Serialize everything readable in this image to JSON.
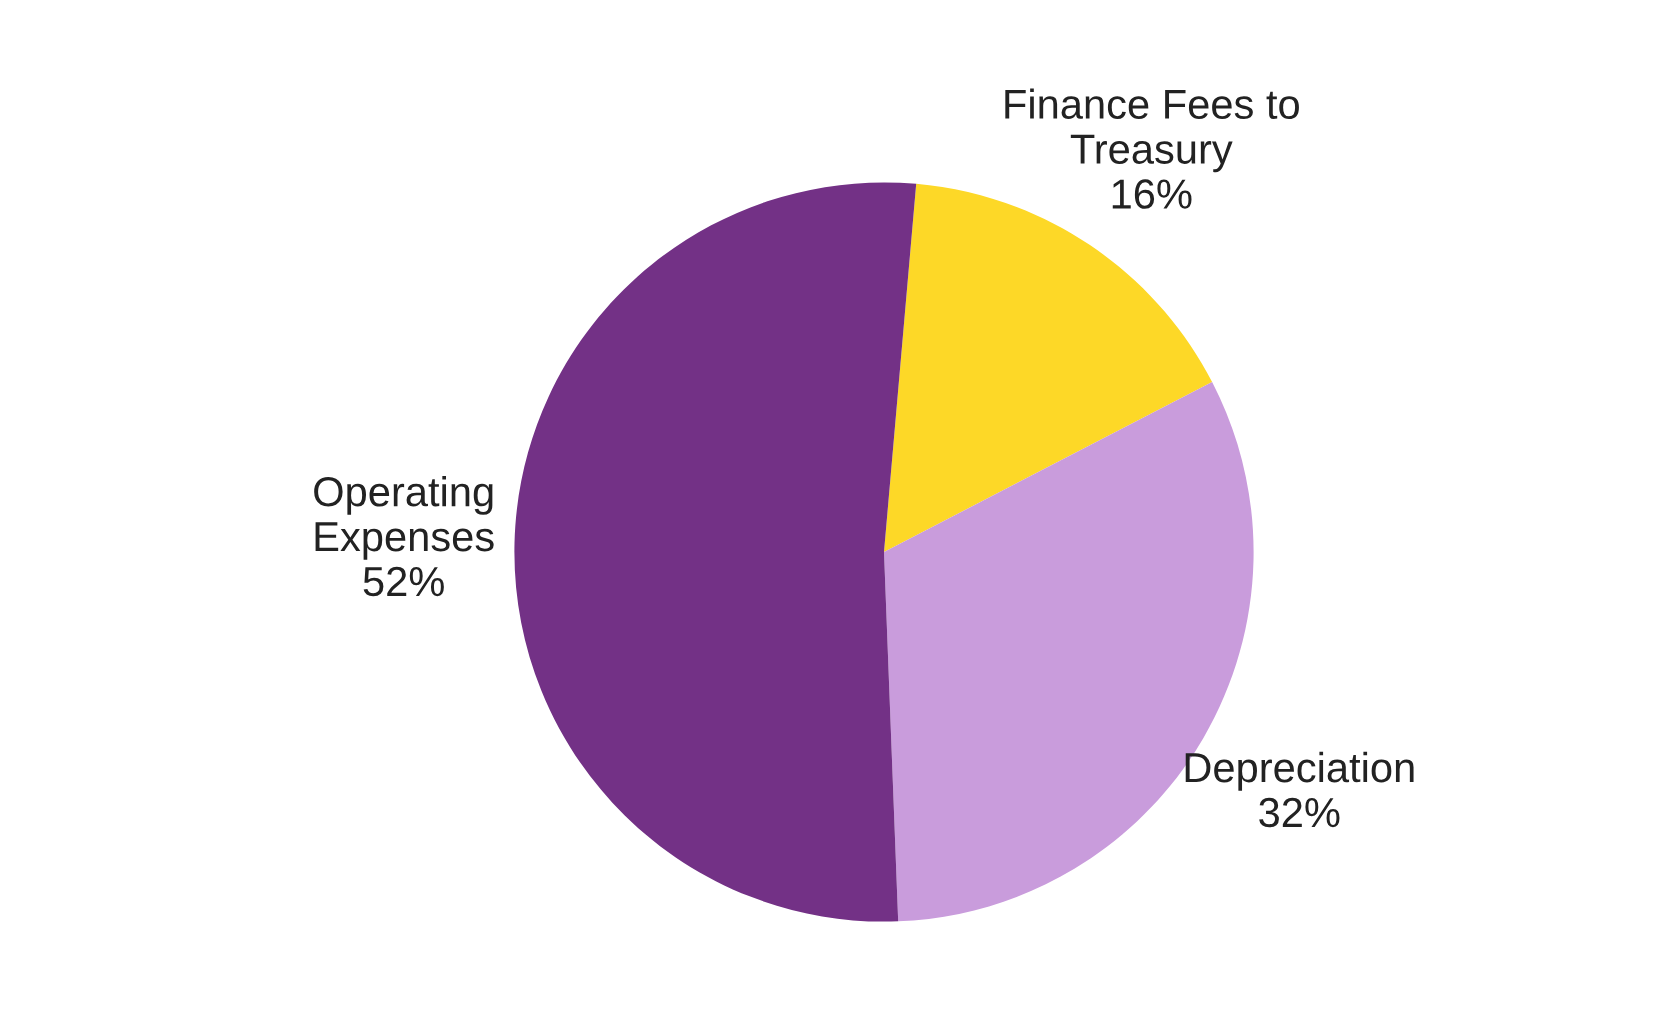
{
  "chart_data": {
    "type": "pie",
    "categories": [
      "Finance Fees to\nTreasury",
      "Depreciation",
      "Operating\nExpenses"
    ],
    "values": [
      16,
      32,
      52
    ],
    "colors": [
      "#fdd827",
      "#c99cdc",
      "#733186"
    ],
    "value_labels": [
      "16%",
      "32%",
      "52%"
    ],
    "legend": false
  }
}
